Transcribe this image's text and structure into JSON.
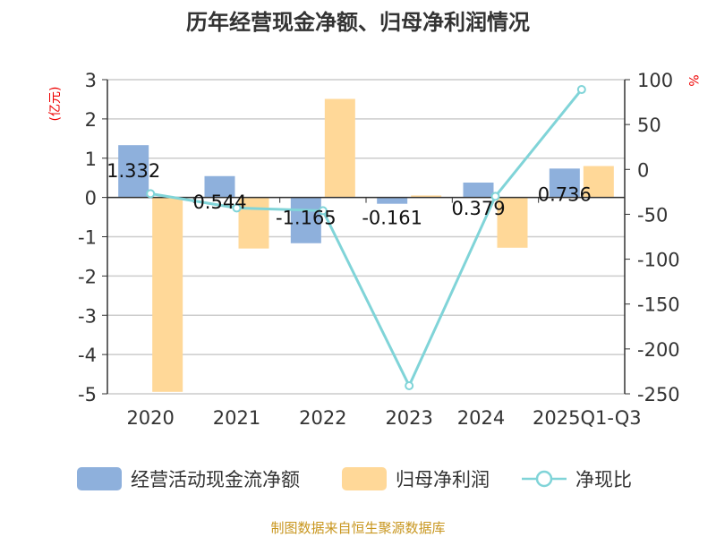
{
  "chart_data": {
    "type": "bar",
    "title": "历年经营现金净额、归母净利润情况",
    "ylabel_left": "(亿元)",
    "ylabel_right": "%",
    "categories": [
      "2020",
      "2021",
      "2022",
      "2023",
      "2024",
      "2025Q1-Q3"
    ],
    "left_ylim": [
      -5,
      3
    ],
    "left_ticks": [
      3,
      2,
      1,
      0,
      -1,
      -2,
      -3,
      -4,
      -5
    ],
    "right_ylim": [
      -250,
      100
    ],
    "right_ticks": [
      100,
      50,
      0,
      -50,
      -100,
      -150,
      -200,
      -250
    ],
    "series": [
      {
        "name": "经营活动现金流净额",
        "type": "bar",
        "axis": "left",
        "color": "#8eb0dc",
        "values": [
          1.332,
          0.544,
          -1.165,
          -0.161,
          0.379,
          0.736
        ],
        "labels": [
          "1.332",
          "0.544",
          "-1.165",
          "-0.161",
          "0.379",
          "0.736"
        ]
      },
      {
        "name": "归母净利润",
        "type": "bar",
        "axis": "left",
        "color": "#ffd898",
        "values": [
          -4.95,
          -1.3,
          2.51,
          0.05,
          -1.28,
          0.8
        ]
      },
      {
        "name": "净现比",
        "type": "line",
        "axis": "right",
        "color": "#80d4d8",
        "values": [
          -27,
          -43,
          -46,
          -241,
          -30,
          89
        ]
      }
    ],
    "grid": true,
    "legend": "bottom",
    "source": "制图数据来自恒生聚源数据库"
  }
}
